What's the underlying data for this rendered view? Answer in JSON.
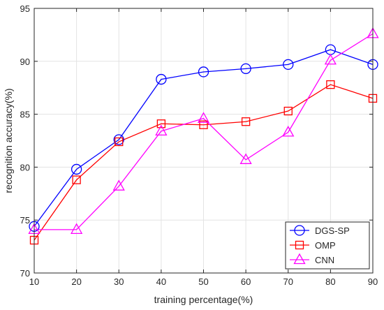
{
  "chart_data": {
    "type": "line",
    "title": "",
    "xlabel": "training percentage(%)",
    "ylabel": "recognition accuracy(%)",
    "xlim": [
      10,
      90
    ],
    "ylim": [
      70,
      95
    ],
    "xticks": [
      10,
      20,
      30,
      40,
      50,
      60,
      70,
      80,
      90
    ],
    "yticks": [
      70,
      75,
      80,
      85,
      90,
      95
    ],
    "grid": true,
    "legend": "bottom-right",
    "x": [
      10,
      20,
      30,
      40,
      50,
      60,
      70,
      80,
      90
    ],
    "series": [
      {
        "name": "DGS-SP",
        "color": "#0000ff",
        "marker": "circle",
        "values": [
          74.4,
          79.8,
          82.6,
          88.3,
          89.0,
          89.3,
          89.7,
          91.1,
          89.7
        ]
      },
      {
        "name": "OMP",
        "color": "#ff0000",
        "marker": "square",
        "values": [
          73.1,
          78.8,
          82.4,
          84.1,
          84.0,
          84.3,
          85.3,
          87.8,
          86.5
        ]
      },
      {
        "name": "CNN",
        "color": "#ff00ff",
        "marker": "triangle",
        "values": [
          74.1,
          74.1,
          78.2,
          83.4,
          84.6,
          80.7,
          83.3,
          90.1,
          92.6
        ]
      }
    ]
  }
}
